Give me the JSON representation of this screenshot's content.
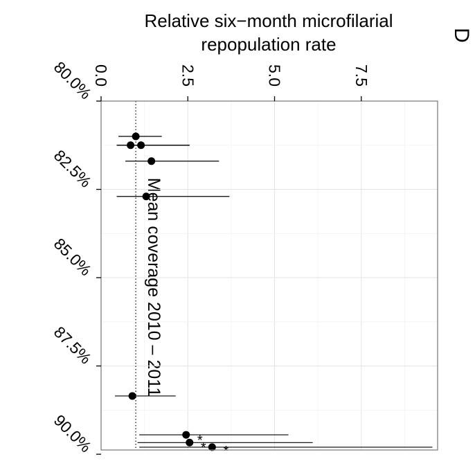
{
  "chart_data": {
    "type": "scatter",
    "panel_label": "D",
    "title_line1": "Relative six−month microfilarial",
    "title_line2": "repopulation rate",
    "x_axis_label": "Mean coverage 2010 – 2011",
    "x_range": [
      80.0,
      89.88
    ],
    "x_ticks": [
      {
        "value": 80.0,
        "label": "80.0%"
      },
      {
        "value": 82.5,
        "label": "82.5%"
      },
      {
        "value": 85.0,
        "label": "85.0%"
      },
      {
        "value": 87.5,
        "label": "87.5%"
      },
      {
        "value": 90.0,
        "label": "90.0%"
      }
    ],
    "y_range": [
      0,
      9.7
    ],
    "y_ticks": [
      {
        "value": 0.0,
        "label": "0.0"
      },
      {
        "value": 2.5,
        "label": "2.5"
      },
      {
        "value": 5.0,
        "label": "5.0"
      },
      {
        "value": 7.5,
        "label": "7.5"
      }
    ],
    "reference_line": 1.0,
    "grid": true,
    "points": [
      {
        "coverage": 81.0,
        "rate": 1.0,
        "ci_low": 0.5,
        "ci_high": 1.75
      },
      {
        "coverage": 81.25,
        "rate": 0.85,
        "ci_low": 0.45,
        "ci_high": 2.55
      },
      {
        "coverage": 81.25,
        "rate": 1.15,
        "ci_low": 0.45,
        "ci_high": 2.55
      },
      {
        "coverage": 81.7,
        "rate": 1.45,
        "ci_low": 0.7,
        "ci_high": 3.4
      },
      {
        "coverage": 82.7,
        "rate": 1.3,
        "ci_low": 0.45,
        "ci_high": 3.7
      },
      {
        "coverage": 88.35,
        "rate": 0.9,
        "ci_low": 0.4,
        "ci_high": 2.15
      },
      {
        "coverage": 89.45,
        "rate": 2.45,
        "ci_low": 1.1,
        "ci_high": 5.4
      },
      {
        "coverage": 89.67,
        "rate": 2.55,
        "ci_low": 1.05,
        "ci_high": 6.1
      },
      {
        "coverage": 89.8,
        "rate": 3.2,
        "ci_low": 1.1,
        "ci_high": 9.55
      }
    ],
    "star_annotations": [
      {
        "coverage": 89.6,
        "rate": 2.85,
        "text": "*"
      },
      {
        "coverage": 89.8,
        "rate": 2.95,
        "text": "*"
      },
      {
        "coverage": 89.9,
        "rate": 3.6,
        "text": "*"
      }
    ]
  }
}
